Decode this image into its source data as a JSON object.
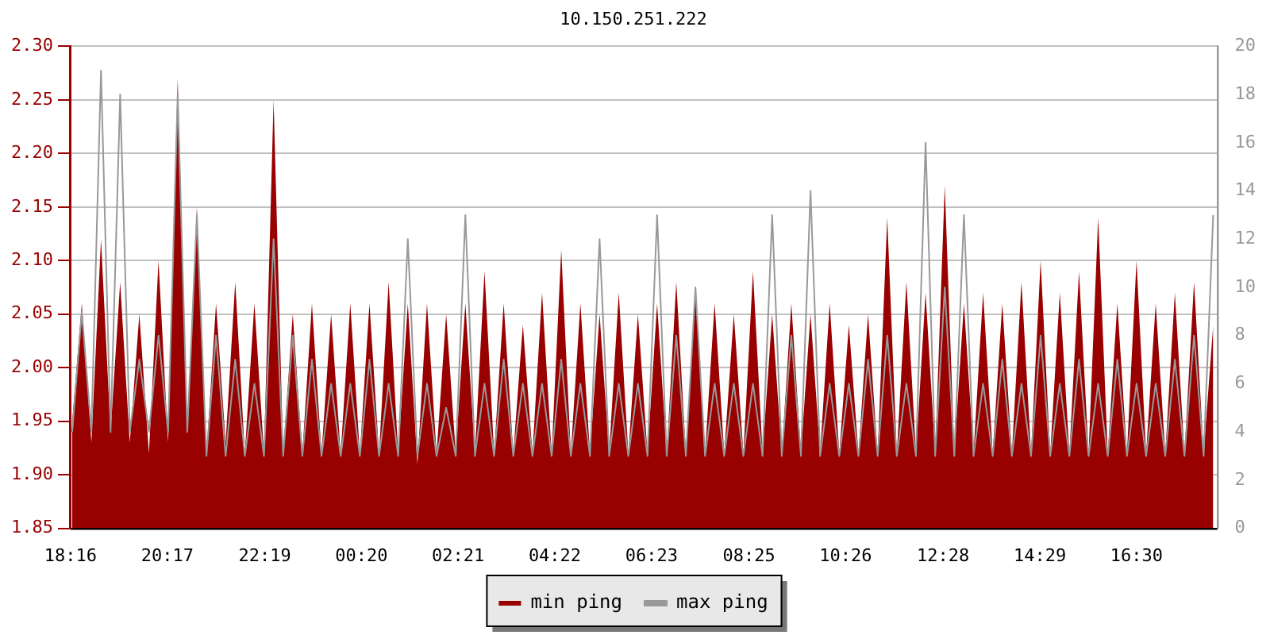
{
  "chart_data": {
    "type": "area",
    "title": "10.150.251.222",
    "legend": "bottom",
    "grid": "y",
    "x": [
      "--01-01T18:18",
      "--01-01T18:30",
      "--01-01T18:42",
      "--01-01T18:54",
      "--01-01T19:06",
      "--01-01T19:18",
      "--01-01T19:30",
      "--01-01T19:42",
      "--01-01T19:54",
      "--01-01T20:06",
      "--01-01T20:18",
      "--01-01T20:30",
      "--01-01T20:42",
      "--01-01T20:54",
      "--01-01T21:06",
      "--01-01T21:18",
      "--01-01T21:30",
      "--01-01T21:42",
      "--01-01T21:54",
      "--01-01T22:06",
      "--01-01T22:18",
      "--01-01T22:30",
      "--01-01T22:42",
      "--01-01T22:54",
      "--01-01T23:06",
      "--01-01T23:18",
      "--01-01T23:30",
      "--01-01T23:42",
      "--01-01T23:54",
      "--01-02T00:06",
      "--01-02T00:18",
      "--01-02T00:30",
      "--01-02T00:42",
      "--01-02T00:54",
      "--01-02T01:06",
      "--01-02T01:18",
      "--01-02T01:30",
      "--01-02T01:42",
      "--01-02T01:54",
      "--01-02T02:06",
      "--01-02T02:18",
      "--01-02T02:30",
      "--01-02T02:42",
      "--01-02T02:54",
      "--01-02T03:06",
      "--01-02T03:18",
      "--01-02T03:30",
      "--01-02T03:42",
      "--01-02T03:54",
      "--01-02T04:06",
      "--01-02T04:18",
      "--01-02T04:30",
      "--01-02T04:42",
      "--01-02T04:54",
      "--01-02T05:06",
      "--01-02T05:18",
      "--01-02T05:30",
      "--01-02T05:42",
      "--01-02T05:54",
      "--01-02T06:06",
      "--01-02T06:18",
      "--01-02T06:30",
      "--01-02T06:42",
      "--01-02T06:54",
      "--01-02T07:06",
      "--01-02T07:18",
      "--01-02T07:30",
      "--01-02T07:42",
      "--01-02T07:54",
      "--01-02T08:06",
      "--01-02T08:18",
      "--01-02T08:30",
      "--01-02T08:42",
      "--01-02T08:54",
      "--01-02T09:06",
      "--01-02T09:18",
      "--01-02T09:30",
      "--01-02T09:42",
      "--01-02T09:54",
      "--01-02T10:06",
      "--01-02T10:18",
      "--01-02T10:30",
      "--01-02T10:42",
      "--01-02T10:54",
      "--01-02T11:06",
      "--01-02T11:18",
      "--01-02T11:30",
      "--01-02T11:42",
      "--01-02T11:54",
      "--01-02T12:06",
      "--01-02T12:18",
      "--01-02T12:30",
      "--01-02T12:42",
      "--01-02T12:54",
      "--01-02T13:06",
      "--01-02T13:18",
      "--01-02T13:30",
      "--01-02T13:42",
      "--01-02T13:54",
      "--01-02T14:06",
      "--01-02T14:18",
      "--01-02T14:30",
      "--01-02T14:42",
      "--01-02T14:54",
      "--01-02T15:06",
      "--01-02T15:18",
      "--01-02T15:30",
      "--01-02T15:42",
      "--01-02T15:54",
      "--01-02T16:06",
      "--01-02T16:18",
      "--01-02T16:30",
      "--01-02T16:42",
      "--01-02T16:54",
      "--01-02T17:06",
      "--01-02T17:18",
      "--01-02T17:30",
      "--01-02T17:42",
      "--01-02T17:54",
      "--01-02T18:06"
    ],
    "xlim": [
      "--01-01T18:16",
      "--01-02T18:11"
    ],
    "xticks": [
      {
        "value": "--01-01T18:16",
        "label": "18:16"
      },
      {
        "value": "--01-01T20:17",
        "label": "20:17"
      },
      {
        "value": "--01-01T22:19",
        "label": "22:19"
      },
      {
        "value": "--01-02T00:20",
        "label": "00:20"
      },
      {
        "value": "--01-02T02:21",
        "label": "02:21"
      },
      {
        "value": "--01-02T04:22",
        "label": "04:22"
      },
      {
        "value": "--01-02T06:23",
        "label": "06:23"
      },
      {
        "value": "--01-02T08:25",
        "label": "08:25"
      },
      {
        "value": "--01-02T10:26",
        "label": "10:26"
      },
      {
        "value": "--01-02T12:28",
        "label": "12:28"
      },
      {
        "value": "--01-02T14:29",
        "label": "14:29"
      },
      {
        "value": "--01-02T16:30",
        "label": "16:30"
      }
    ],
    "ylim": [
      1.85,
      2.3
    ],
    "yticks": [
      {
        "value": 1.85,
        "label": "1.85"
      },
      {
        "value": 1.9,
        "label": "1.90"
      },
      {
        "value": 1.95,
        "label": "1.95"
      },
      {
        "value": 2.0,
        "label": "2.00"
      },
      {
        "value": 2.05,
        "label": "2.05"
      },
      {
        "value": 2.1,
        "label": "2.10"
      },
      {
        "value": 2.15,
        "label": "2.15"
      },
      {
        "value": 2.2,
        "label": "2.20"
      },
      {
        "value": 2.25,
        "label": "2.25"
      },
      {
        "value": 2.3,
        "label": "2.30"
      }
    ],
    "y2lim": [
      0,
      20
    ],
    "y2ticks": [
      0,
      2,
      4,
      6,
      8,
      10,
      12,
      14,
      16,
      18,
      20
    ],
    "series": [
      {
        "name": "min ping",
        "color": "#990000",
        "values": [
          1.95,
          2.06,
          1.93,
          2.12,
          1.94,
          2.08,
          1.93,
          2.05,
          1.92,
          2.1,
          1.93,
          2.27,
          1.94,
          2.15,
          1.92,
          2.06,
          1.93,
          2.08,
          1.92,
          2.06,
          1.92,
          2.25,
          1.92,
          2.05,
          1.92,
          2.06,
          1.92,
          2.05,
          1.92,
          2.06,
          1.92,
          2.06,
          1.92,
          2.08,
          1.92,
          2.06,
          1.91,
          2.06,
          1.92,
          2.05,
          1.92,
          2.06,
          1.92,
          2.09,
          1.92,
          2.06,
          1.92,
          2.04,
          1.92,
          2.07,
          1.92,
          2.11,
          1.92,
          2.06,
          1.92,
          2.05,
          1.92,
          2.07,
          1.92,
          2.05,
          1.92,
          2.06,
          1.92,
          2.08,
          1.92,
          2.07,
          1.92,
          2.06,
          1.92,
          2.05,
          1.92,
          2.09,
          1.92,
          2.05,
          1.92,
          2.06,
          1.92,
          2.05,
          1.92,
          2.06,
          1.92,
          2.04,
          1.92,
          2.05,
          1.92,
          2.14,
          1.92,
          2.08,
          1.92,
          2.07,
          1.92,
          2.17,
          1.92,
          2.06,
          1.92,
          2.07,
          1.92,
          2.06,
          1.92,
          2.08,
          1.92,
          2.1,
          1.92,
          2.07,
          1.92,
          2.09,
          1.92,
          2.14,
          1.92,
          2.06,
          1.92,
          2.1,
          1.92,
          2.06,
          1.92,
          2.07,
          1.92,
          2.08,
          1.92,
          2.04
        ]
      },
      {
        "name": "max ping",
        "type": "line",
        "axis": "y2",
        "color": "#999999",
        "values": [
          4,
          9,
          4,
          19,
          4,
          18,
          4,
          7,
          4,
          8,
          4,
          18,
          4,
          13,
          3,
          8,
          3,
          7,
          3,
          6,
          3,
          12,
          3,
          8,
          3,
          7,
          3,
          6,
          3,
          6,
          3,
          7,
          3,
          6,
          3,
          12,
          3,
          6,
          3,
          5,
          3,
          13,
          3,
          6,
          3,
          7,
          3,
          6,
          3,
          6,
          3,
          7,
          3,
          6,
          3,
          12,
          3,
          6,
          3,
          6,
          3,
          13,
          3,
          8,
          3,
          10,
          3,
          6,
          3,
          6,
          3,
          6,
          3,
          13,
          3,
          8,
          3,
          14,
          3,
          6,
          3,
          6,
          3,
          7,
          3,
          8,
          3,
          6,
          3,
          16,
          3,
          10,
          3,
          13,
          3,
          6,
          3,
          7,
          3,
          6,
          3,
          8,
          3,
          6,
          3,
          7,
          3,
          6,
          3,
          7,
          3,
          6,
          3,
          6,
          3,
          7,
          3,
          8,
          3,
          13
        ]
      }
    ]
  }
}
